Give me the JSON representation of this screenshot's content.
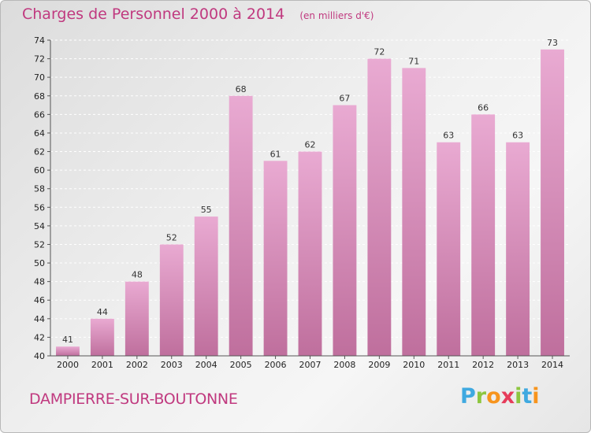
{
  "title": "Charges de Personnel 2000 à 2014",
  "subtitle": "(en milliers d'€)",
  "commune": "DAMPIERRE-SUR-BOUTONNE",
  "logo": {
    "letters": [
      "P",
      "r",
      "o",
      "x",
      "i",
      "t",
      "i"
    ]
  },
  "colors": {
    "accent": "#c0397f",
    "bar_light": "#e8a8d0",
    "bar_dark": "#c0719e"
  },
  "chart_data": {
    "type": "bar",
    "title": "Charges de Personnel 2000 à 2014",
    "subtitle": "(en milliers d'€)",
    "categories": [
      "2000",
      "2001",
      "2002",
      "2003",
      "2004",
      "2005",
      "2006",
      "2007",
      "2008",
      "2009",
      "2010",
      "2011",
      "2012",
      "2013",
      "2014"
    ],
    "values": [
      41,
      44,
      48,
      52,
      55,
      68,
      61,
      62,
      67,
      72,
      71,
      63,
      66,
      63,
      73
    ],
    "ylim": [
      40,
      74
    ],
    "yticks": [
      40,
      42,
      44,
      46,
      48,
      50,
      52,
      54,
      56,
      58,
      60,
      62,
      64,
      66,
      68,
      70,
      72,
      74
    ],
    "grid": true,
    "data_labels": true
  }
}
